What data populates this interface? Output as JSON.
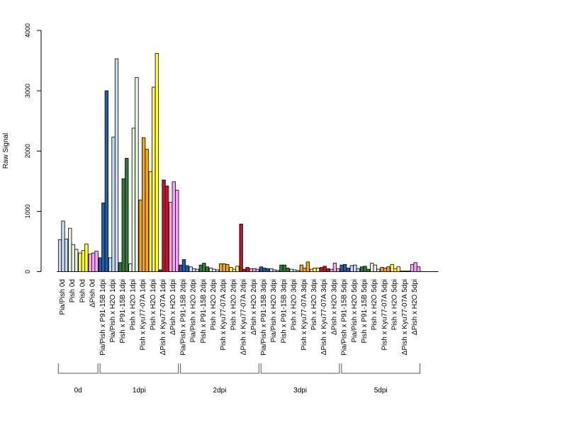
{
  "chart_data": {
    "type": "bar",
    "ylabel": "Raw Signal",
    "ylim": [
      0,
      4000
    ],
    "yticks": [
      0,
      1000,
      2000,
      3000,
      4000
    ],
    "grid": false,
    "replicates_per_category": 3,
    "categories": [
      {
        "label": "Pia/Pish 0d",
        "color": "#c6dbef",
        "values": [
          530,
          840,
          540
        ]
      },
      {
        "label": "Pish 0d",
        "color": "#e5f5e0",
        "values": [
          720,
          450,
          370
        ]
      },
      {
        "label": "Pish 0d",
        "color": "#ffff33",
        "values": [
          310,
          350,
          460
        ]
      },
      {
        "label": "ΔPish 0d",
        "color": "#f4a6f4",
        "values": [
          290,
          310,
          340
        ]
      },
      {
        "label": "Pia/Pish x P91-15B 1dpi",
        "color": "#1f5fa8",
        "values": [
          230,
          1140,
          3000
        ]
      },
      {
        "label": "Pia/Pish x H2O 1dpi",
        "color": "#c6dbef",
        "values": [
          230,
          2230,
          3530
        ]
      },
      {
        "label": "Pish x P91-15B 1dpi",
        "color": "#2e7d32",
        "values": [
          150,
          1540,
          1880
        ]
      },
      {
        "label": "Pish x H2O 1dpi",
        "color": "#e5f5e0",
        "values": [
          130,
          2380,
          3220
        ]
      },
      {
        "label": "Pish x Kyu77-07A 1dpi",
        "color": "#ffa500",
        "values": [
          1190,
          2220,
          2030
        ]
      },
      {
        "label": "Pish x H2O 1dpi",
        "color": "#ffff33",
        "values": [
          1660,
          3060,
          3620
        ]
      },
      {
        "label": "ΔPish x Kyu77-07A 1dpi",
        "color": "#c8102e",
        "values": [
          30,
          1520,
          1420
        ]
      },
      {
        "label": "ΔPish x H2O 1dpi",
        "color": "#f4a6f4",
        "values": [
          1150,
          1490,
          1350
        ]
      },
      {
        "label": "Pia/Pish x P91-15B 2dpi",
        "color": "#1f5fa8",
        "values": [
          110,
          200,
          100
        ]
      },
      {
        "label": "Pia/Pish x H2O 2dpi",
        "color": "#c6dbef",
        "values": [
          80,
          50,
          40
        ]
      },
      {
        "label": "Pish x P91-15B 2dpi",
        "color": "#2e7d32",
        "values": [
          110,
          140,
          80
        ]
      },
      {
        "label": "Pish x H2O 2dpi",
        "color": "#e5f5e0",
        "values": [
          60,
          40,
          30
        ]
      },
      {
        "label": "Pish x Kyu77-07A 2dpi",
        "color": "#ffa500",
        "values": [
          130,
          130,
          120
        ]
      },
      {
        "label": "Pish x H2O 2dpi",
        "color": "#ffff33",
        "values": [
          70,
          40,
          90
        ]
      },
      {
        "label": "ΔPish x Kyu77-07A 2dpi",
        "color": "#c8102e",
        "values": [
          790,
          40,
          70
        ]
      },
      {
        "label": "ΔPish x H2O 2dpi",
        "color": "#f4a6f4",
        "values": [
          50,
          50,
          40
        ]
      },
      {
        "label": "Pia/Pish x P91-15B 3dpi",
        "color": "#1f5fa8",
        "values": [
          80,
          60,
          50
        ]
      },
      {
        "label": "Pia/Pish x H2O 3dpi",
        "color": "#c6dbef",
        "values": [
          50,
          30,
          20
        ]
      },
      {
        "label": "Pish x P91-15B 3dpi",
        "color": "#2e7d32",
        "values": [
          110,
          110,
          60
        ]
      },
      {
        "label": "Pish x H2O 3dpi",
        "color": "#e5f5e0",
        "values": [
          40,
          30,
          20
        ]
      },
      {
        "label": "Pish x Kyu77-07A 3dpi",
        "color": "#ffa500",
        "values": [
          110,
          60,
          160
        ]
      },
      {
        "label": "Pish x H2O 3dpi",
        "color": "#ffff33",
        "values": [
          40,
          60,
          60
        ]
      },
      {
        "label": "ΔPish x Kyu77-07A 3dpi",
        "color": "#c8102e",
        "values": [
          70,
          90,
          50
        ]
      },
      {
        "label": "ΔPish x H2O 3dpi",
        "color": "#f4a6f4",
        "values": [
          40,
          140,
          50
        ]
      },
      {
        "label": "Pia/Pish x P91-15B 5dpi",
        "color": "#1f5fa8",
        "values": [
          110,
          120,
          60
        ]
      },
      {
        "label": "Pia/Pish x H2O 5dpi",
        "color": "#c6dbef",
        "values": [
          100,
          110,
          50
        ]
      },
      {
        "label": "Pish x P91-15B 5dpi",
        "color": "#2e7d32",
        "values": [
          80,
          90,
          40
        ]
      },
      {
        "label": "Pish x H2O 5dpi",
        "color": "#e5f5e0",
        "values": [
          140,
          110,
          40
        ]
      },
      {
        "label": "Pish x Kyu77-07A 5dpi",
        "color": "#ffa500",
        "values": [
          70,
          60,
          80
        ]
      },
      {
        "label": "Pish x H2O 5dpi",
        "color": "#ffff33",
        "values": [
          120,
          50,
          80
        ]
      },
      {
        "label": "ΔPish x Kyu77-07A 5dpi",
        "color": "#c8102e",
        "values": [
          10,
          10,
          10
        ]
      },
      {
        "label": "ΔPish x H2O 5dpi",
        "color": "#f4a6f4",
        "values": [
          120,
          150,
          80
        ]
      }
    ],
    "groups": [
      {
        "label": "0d",
        "count": 4
      },
      {
        "label": "1dpi",
        "count": 8
      },
      {
        "label": "2dpi",
        "count": 8
      },
      {
        "label": "3dpi",
        "count": 8
      },
      {
        "label": "5dpi",
        "count": 8
      }
    ]
  }
}
